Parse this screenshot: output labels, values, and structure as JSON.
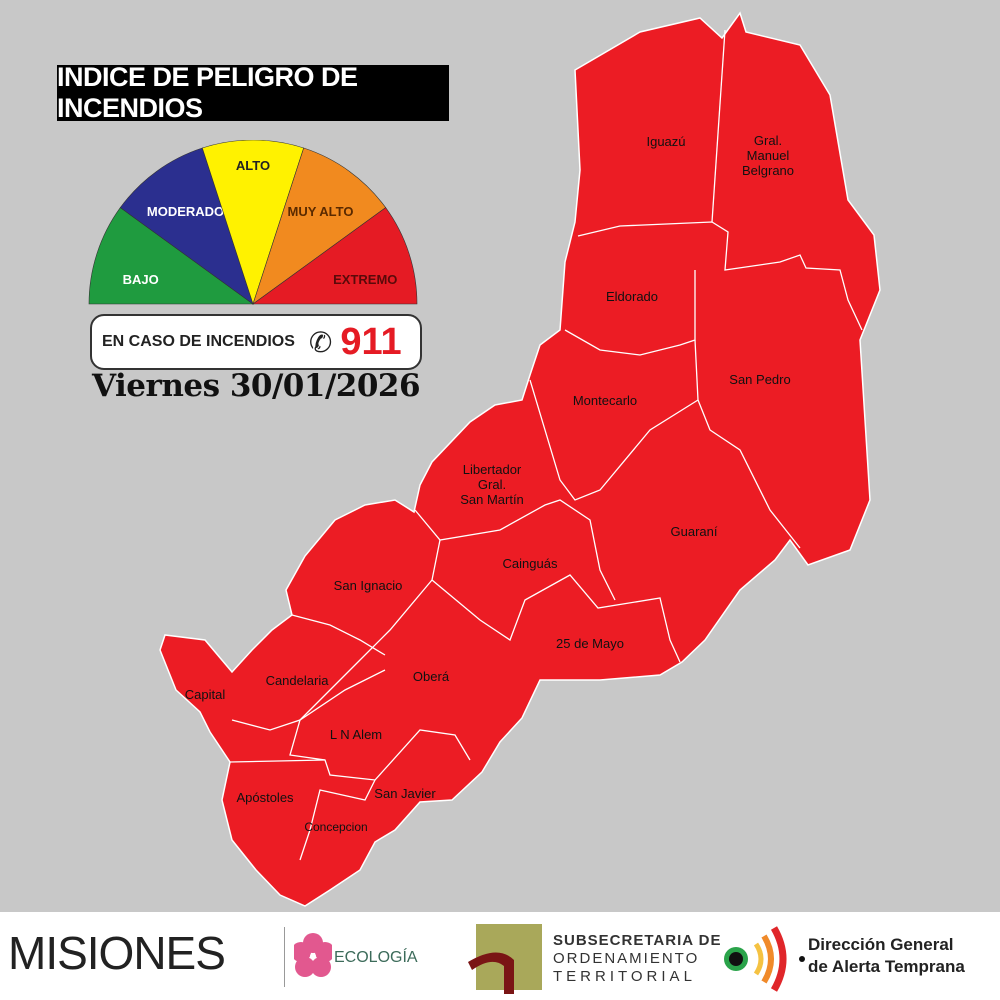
{
  "header": {
    "title": "INDICE DE PELIGRO DE INCENDIOS"
  },
  "gauge": {
    "levels": [
      {
        "label": "BAJO",
        "color": "#1f9b3f"
      },
      {
        "label": "MODERADO",
        "color": "#2b2f8f"
      },
      {
        "label": "ALTO",
        "color": "#fff200"
      },
      {
        "label": "MUY ALTO",
        "color": "#f18a1f"
      },
      {
        "label": "EXTREMO",
        "color": "#e51b24"
      }
    ]
  },
  "emergency": {
    "text": "EN CASO DE INCENDIOS",
    "icon": "phone-icon",
    "number": "911"
  },
  "date": "Viernes 30/01/2026",
  "map": {
    "fill_color": "#ec1c24",
    "current_level": "EXTREMO",
    "departments": [
      "Iguazú",
      "Gral. Manuel Belgrano",
      "Eldorado",
      "San Pedro",
      "Montecarlo",
      "Libertador Gral. San Martín",
      "Guaraní",
      "Cainguás",
      "San Ignacio",
      "25 de Mayo",
      "Candelaria",
      "Capital",
      "Oberá",
      "L N Alem",
      "Apóstoles",
      "San Javier",
      "Concepcion"
    ]
  },
  "labels": {
    "iguazu": "Iguazú",
    "belgrano_1": "Gral.",
    "belgrano_2": "Manuel",
    "belgrano_3": "Belgrano",
    "eldorado": "Eldorado",
    "san_pedro": "San Pedro",
    "montecarlo": "Montecarlo",
    "lgsm_1": "Libertador",
    "lgsm_2": "Gral.",
    "lgsm_3": "San Martín",
    "guarani": "Guaraní",
    "cainguas": "Cainguás",
    "san_ignacio": "San Ignacio",
    "mayo": "25 de Mayo",
    "candelaria": "Candelaria",
    "capital": "Capital",
    "obera": "Oberá",
    "alem": "L N Alem",
    "apostoles": "Apóstoles",
    "san_javier": "San Javier",
    "concepcion": "Concepcion"
  },
  "footer": {
    "misiones": "MISIONES",
    "ecologia": "ECOLOGÍA",
    "sub_1": "SUBSECRETARIA DE",
    "sub_2": "ORDENAMIENTO",
    "sub_3": "TERRITORIAL",
    "dir_1": "Dirección General",
    "dir_2": "de Alerta Temprana"
  }
}
